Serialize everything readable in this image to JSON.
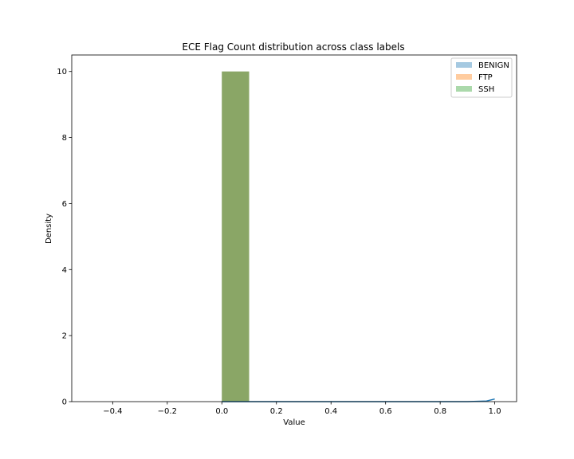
{
  "chart_data": {
    "type": "bar",
    "title": "ECE Flag Count distribution across class labels",
    "xlabel": "Value",
    "ylabel": "Density",
    "xlim": [
      -0.55,
      1.08
    ],
    "ylim": [
      0,
      10.5
    ],
    "xticks": [
      -0.4,
      -0.2,
      0.0,
      0.2,
      0.4,
      0.6,
      0.8,
      1.0
    ],
    "xtick_labels": [
      "−0.4",
      "−0.2",
      "0.0",
      "0.2",
      "0.4",
      "0.6",
      "0.8",
      "1.0"
    ],
    "yticks": [
      0,
      2,
      4,
      6,
      8,
      10
    ],
    "ytick_labels": [
      "0",
      "2",
      "4",
      "6",
      "8",
      "10"
    ],
    "grid": false,
    "legend_position": "top-right",
    "series": [
      {
        "name": "BENIGN",
        "color": "#1f77b4",
        "alpha": 0.4,
        "bins": [
          {
            "x0": 0.0,
            "x1": 0.1,
            "density": 10
          }
        ]
      },
      {
        "name": "FTP",
        "color": "#ff7f0e",
        "alpha": 0.4,
        "bins": [
          {
            "x0": 0.0,
            "x1": 0.1,
            "density": 10
          }
        ]
      },
      {
        "name": "SSH",
        "color": "#2ca02c",
        "alpha": 0.4,
        "bins": [
          {
            "x0": 0.0,
            "x1": 0.1,
            "density": 10
          }
        ]
      }
    ],
    "density_line": {
      "color": "#1f77b4",
      "x": [
        0.0,
        0.2,
        0.4,
        0.6,
        0.8,
        0.9,
        0.97,
        1.0
      ],
      "y": [
        0.0,
        0.0,
        0.0,
        0.0,
        0.0,
        0.0,
        0.02,
        0.08
      ]
    }
  }
}
